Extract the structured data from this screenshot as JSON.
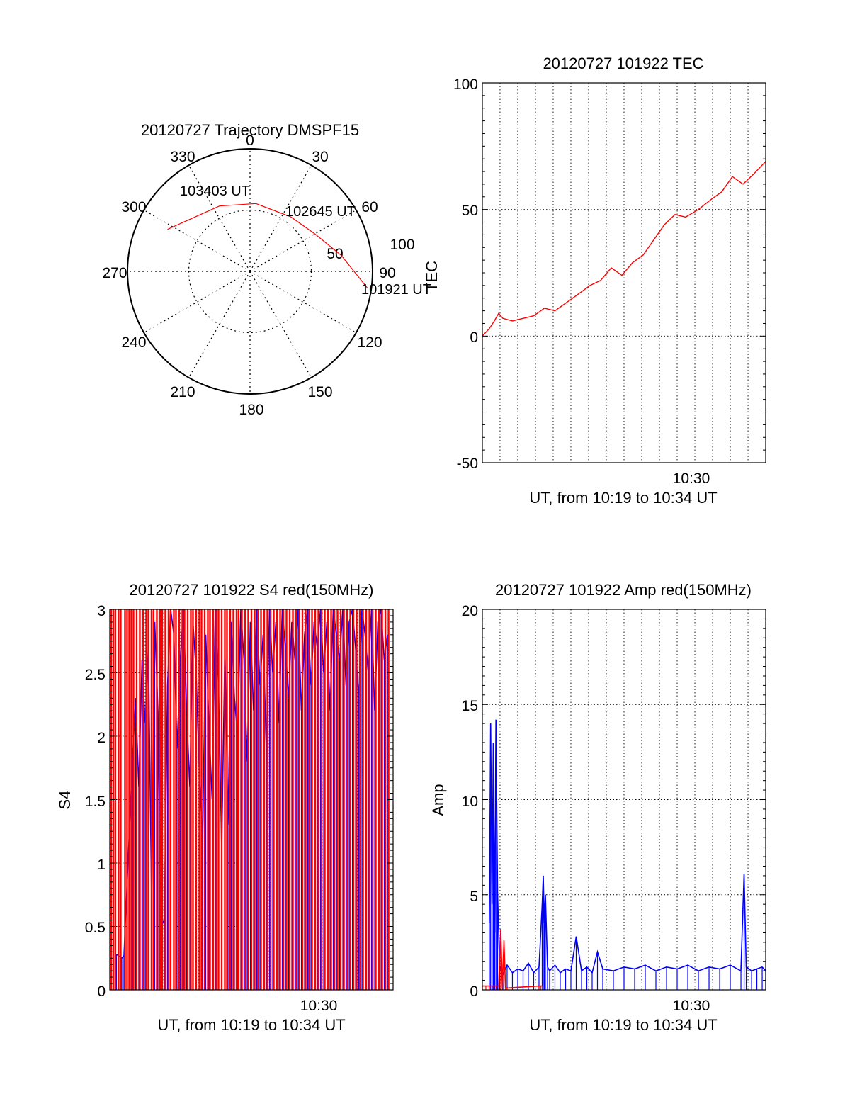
{
  "page": {
    "background": "#ffffff"
  },
  "polar": {
    "title": "20120727 Trajectory DMSPF15",
    "azimuth_labels": [
      "0",
      "30",
      "60",
      "90",
      "120",
      "150",
      "180",
      "210",
      "240",
      "270",
      "300",
      "330"
    ],
    "radial_labels": [
      "50",
      "100"
    ],
    "track_color": "#ff0000",
    "track": [
      {
        "az": 297,
        "el": 22,
        "label": "103403 UT"
      },
      {
        "az": 335,
        "el": 37
      },
      {
        "az": 5,
        "el": 40
      },
      {
        "az": 37,
        "el": 40,
        "label": "102645 UT"
      },
      {
        "az": 60,
        "el": 35
      },
      {
        "az": 80,
        "el": 22
      },
      {
        "az": 98,
        "el": 3,
        "label": "101921 UT"
      }
    ]
  },
  "chart_data": [
    {
      "id": "tec",
      "type": "line",
      "title": "20120727 101922 TEC",
      "xlabel": "UT, from 10:19 to 10:34 UT",
      "ylabel": "TEC",
      "xlim": [
        10.3167,
        10.5833
      ],
      "ylim": [
        -50,
        100
      ],
      "yticks": [
        "-50",
        "0",
        "50",
        "100"
      ],
      "xticks": [
        {
          "value": 10.5,
          "label": "10:30"
        }
      ],
      "grid": true,
      "series": [
        {
          "color": "#ff0000",
          "x": [
            10.3167,
            10.3233,
            10.328,
            10.332,
            10.336,
            10.345,
            10.355,
            10.365,
            10.375,
            10.385,
            10.395,
            10.405,
            10.418,
            10.428,
            10.438,
            10.448,
            10.458,
            10.468,
            10.478,
            10.488,
            10.498,
            10.508,
            10.52,
            10.532,
            10.542,
            10.552,
            10.562,
            10.572,
            10.5833
          ],
          "y": [
            0,
            3,
            6,
            9,
            7,
            6,
            7,
            8,
            11,
            10,
            13,
            16,
            20,
            22,
            27,
            24,
            29,
            32,
            38,
            44,
            48,
            47,
            50,
            54,
            57,
            63,
            60,
            64,
            69
          ]
        }
      ]
    },
    {
      "id": "s4",
      "type": "line",
      "title": "20120727 101922 S4 red(150MHz)",
      "xlabel": "UT, from 10:19 to 10:34 UT",
      "ylabel": "S4",
      "xlim": [
        10.3167,
        10.5833
      ],
      "ylim": [
        0,
        3
      ],
      "yticks": [
        "0",
        "0.5",
        "1",
        "1.5",
        "2",
        "2.5",
        "3"
      ],
      "xticks": [
        {
          "value": 10.5,
          "label": "10:30"
        }
      ],
      "grid": true,
      "series": [
        {
          "color": "#0000ff",
          "x": [
            10.323,
            10.328,
            10.33,
            10.338,
            10.341,
            10.344,
            10.347,
            10.35,
            10.353,
            10.356,
            10.359,
            10.362,
            10.365,
            10.368,
            10.371,
            10.374,
            10.377,
            10.38,
            10.383,
            10.386,
            10.389,
            10.392,
            10.395,
            10.398,
            10.401,
            10.404,
            10.407,
            10.41,
            10.413,
            10.416,
            10.419,
            10.422,
            10.425,
            10.428,
            10.431,
            10.434,
            10.437,
            10.44,
            10.443,
            10.446,
            10.449,
            10.452,
            10.455,
            10.458,
            10.461,
            10.464,
            10.467,
            10.47,
            10.473,
            10.476,
            10.479,
            10.482,
            10.485,
            10.488,
            10.491,
            10.494,
            10.497,
            10.5,
            10.503,
            10.506,
            10.509,
            10.512,
            10.515,
            10.518,
            10.521,
            10.524,
            10.527,
            10.53,
            10.533,
            10.536,
            10.539,
            10.542,
            10.545,
            10.548,
            10.551,
            10.554,
            10.557,
            10.56,
            10.563,
            10.566,
            10.569,
            10.572,
            10.575,
            10.578
          ],
          "y": [
            0.28,
            0.25,
            0.27,
            1.8,
            2.3,
            1.6,
            2.6,
            2.1,
            2.7,
            0.7,
            2.9,
            2.2,
            0.5,
            0.55,
            2.4,
            3.0,
            2.8,
            1.9,
            2.6,
            3.0,
            2.2,
            1.6,
            2.9,
            2.5,
            1.7,
            1.2,
            2.8,
            2.1,
            1.5,
            3.0,
            2.4,
            1.1,
            2.7,
            1.3,
            2.9,
            2.3,
            2.0,
            3.0,
            2.6,
            1.8,
            2.9,
            2.2,
            3.0,
            2.4,
            2.8,
            1.9,
            3.0,
            2.5,
            2.9,
            2.1,
            3.0,
            2.7,
            2.3,
            2.9,
            2.6,
            3.0,
            2.2,
            2.8,
            3.0,
            2.4,
            2.9,
            2.7,
            3.0,
            2.5,
            2.9,
            2.2,
            3.0,
            2.8,
            2.6,
            3.0,
            2.4,
            2.9,
            3.0,
            2.7,
            2.3,
            3.0,
            2.8,
            2.5,
            3.0,
            2.2,
            2.9,
            3.0,
            2.6,
            2.8
          ]
        },
        {
          "color": "#ff0000",
          "x": [
            10.318,
            10.32,
            10.322,
            10.325,
            10.327,
            10.331,
            10.333,
            10.335,
            10.337,
            10.339,
            10.342,
            10.345,
            10.348,
            10.351,
            10.353,
            10.356,
            10.358,
            10.361,
            10.364,
            10.366,
            10.369,
            10.372,
            10.374,
            10.377,
            10.379,
            10.382,
            10.385,
            10.387,
            10.39,
            10.393,
            10.395,
            10.398,
            10.401,
            10.403,
            10.406,
            10.409,
            10.411,
            10.414,
            10.417,
            10.419,
            10.422,
            10.425,
            10.427,
            10.43,
            10.433,
            10.436,
            10.438,
            10.441,
            10.444,
            10.447,
            10.45,
            10.453,
            10.456,
            10.459,
            10.462,
            10.465,
            10.468,
            10.471,
            10.474,
            10.477,
            10.48,
            10.483,
            10.486,
            10.489,
            10.492,
            10.495,
            10.498,
            10.501,
            10.504,
            10.507,
            10.51,
            10.513,
            10.516,
            10.519,
            10.522,
            10.525,
            10.528,
            10.531,
            10.534,
            10.537,
            10.54,
            10.543,
            10.546,
            10.549,
            10.552,
            10.555,
            10.558,
            10.561,
            10.564,
            10.567,
            10.57,
            10.573,
            10.576,
            10.579
          ],
          "y": [
            3,
            3,
            3,
            3,
            3,
            3,
            3,
            3,
            3,
            3,
            3,
            3,
            3,
            3,
            3,
            3,
            3,
            3,
            3,
            3,
            3,
            3,
            3,
            3,
            3,
            3,
            3,
            3,
            3,
            3,
            3,
            3,
            3,
            3,
            3,
            3,
            3,
            3,
            3,
            3,
            3,
            3,
            3,
            3,
            3,
            3,
            3,
            3,
            3,
            3,
            3,
            3,
            3,
            3,
            3,
            3,
            3,
            3,
            3,
            3,
            3,
            3,
            3,
            3,
            3,
            3,
            3,
            3,
            3,
            3,
            3,
            3,
            3,
            3,
            3,
            3,
            3,
            3,
            3,
            3,
            3,
            3,
            3,
            3,
            3,
            3,
            3,
            3,
            3,
            3,
            3,
            3,
            3,
            3
          ]
        }
      ]
    },
    {
      "id": "amp",
      "type": "line",
      "title": "20120727 101922 Amp red(150MHz)",
      "xlabel": "UT, from 10:19 to 10:34 UT",
      "ylabel": "Amp",
      "xlim": [
        10.3167,
        10.5833
      ],
      "ylim": [
        0,
        20
      ],
      "yticks": [
        "0",
        "5",
        "10",
        "15",
        "20"
      ],
      "xticks": [
        {
          "value": 10.5,
          "label": "10:30"
        }
      ],
      "grid": true,
      "series": [
        {
          "color": "#0000ff",
          "x": [
            10.3233,
            10.3245,
            10.3258,
            10.327,
            10.3283,
            10.3295,
            10.331,
            10.333,
            10.336,
            10.34,
            10.345,
            10.35,
            10.355,
            10.36,
            10.365,
            10.37,
            10.373,
            10.374,
            10.375,
            10.376,
            10.378,
            10.38,
            10.385,
            10.39,
            10.395,
            10.4,
            10.405,
            10.41,
            10.415,
            10.42,
            10.425,
            10.43,
            10.44,
            10.45,
            10.46,
            10.47,
            10.48,
            10.49,
            10.5,
            10.51,
            10.52,
            10.53,
            10.54,
            10.55,
            10.56,
            10.563,
            10.565,
            10.57,
            10.575,
            10.58,
            10.5833
          ],
          "y": [
            3.5,
            14.0,
            4.5,
            13.0,
            3.0,
            14.2,
            5.0,
            1.2,
            0.8,
            1.3,
            0.9,
            1.1,
            1.0,
            1.4,
            0.9,
            1.2,
            4.5,
            6.0,
            3.5,
            5.0,
            1.2,
            1.0,
            1.3,
            0.9,
            1.1,
            1.0,
            2.8,
            1.0,
            1.2,
            0.9,
            2.0,
            1.1,
            1.0,
            1.2,
            1.1,
            1.3,
            1.0,
            1.2,
            1.1,
            1.3,
            1.0,
            1.2,
            1.1,
            1.3,
            1.0,
            6.1,
            1.2,
            1.0,
            1.1,
            1.2,
            1.0
          ]
        },
        {
          "color": "#ff0000",
          "x": [
            10.3167,
            10.32,
            10.323,
            10.3265,
            10.33,
            10.332,
            10.334,
            10.3355,
            10.337,
            10.3385,
            10.34,
            10.37,
            10.3715,
            10.373
          ],
          "y": [
            0.2,
            0.2,
            0.2,
            0.2,
            0.2,
            0.2,
            3.2,
            0.1,
            2.6,
            0.1,
            0.1,
            0.2,
            0.2,
            0.2
          ]
        }
      ]
    }
  ]
}
